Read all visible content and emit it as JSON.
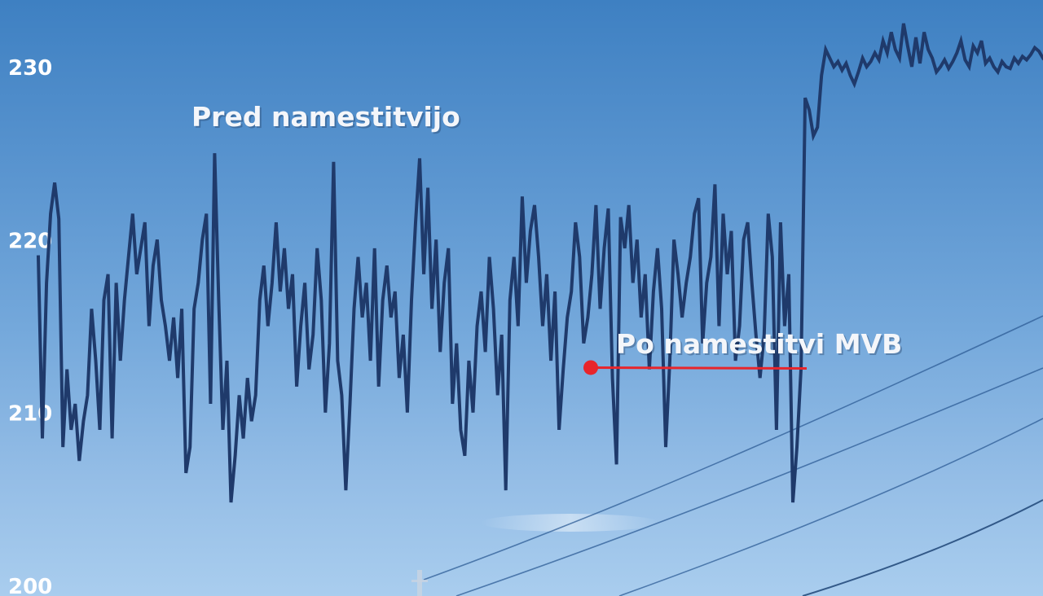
{
  "colors": {
    "line": "#1f3a6b",
    "marker": "#e8252b",
    "label_text": "#ffffff"
  },
  "chart_data": {
    "type": "line",
    "title": "",
    "xlabel": "",
    "ylabel": "",
    "ylim": [
      200,
      230.5
    ],
    "y_ticks": [
      230,
      220,
      210,
      200
    ],
    "y_tick_labels": [
      "230",
      "220",
      "210",
      "200"
    ],
    "grid": false,
    "legend": "none",
    "annotations": {
      "before": "Pred namestitvijo",
      "after": "Po namestitvi MVB"
    },
    "marker_value": 212.6,
    "series": [
      {
        "values": [
          219.0,
          208.5,
          217.5,
          221.5,
          223.3,
          221.2,
          208.0,
          212.5,
          209.0,
          210.5,
          207.2,
          209.5,
          211.0,
          216.0,
          213.0,
          209.0,
          216.5,
          218.0,
          208.5,
          217.5,
          213.0,
          216.5,
          219.0,
          221.5,
          218.0,
          219.5,
          221.0,
          215.0,
          218.5,
          220.0,
          216.5,
          215.0,
          213.0,
          215.5,
          212.0,
          216.0,
          206.5,
          208.0,
          216.0,
          217.5,
          220.0,
          221.5,
          210.5,
          225.0,
          216.5,
          209.0,
          213.0,
          204.8,
          207.5,
          211.0,
          208.5,
          212.0,
          209.5,
          211.0,
          216.5,
          218.5,
          215.0,
          217.5,
          221.0,
          217.0,
          219.5,
          216.0,
          218.0,
          211.5,
          215.0,
          217.5,
          212.5,
          214.5,
          219.5,
          216.5,
          210.0,
          214.0,
          224.5,
          213.0,
          211.0,
          205.5,
          210.5,
          216.0,
          219.0,
          215.5,
          217.5,
          213.0,
          219.5,
          211.5,
          216.5,
          218.5,
          215.5,
          217.0,
          212.0,
          214.5,
          210.0,
          216.5,
          221.0,
          224.7,
          218.0,
          223.0,
          216.0,
          220.0,
          213.5,
          217.5,
          219.5,
          210.5,
          214.0,
          209.0,
          207.5,
          213.0,
          210.0,
          215.0,
          217.0,
          213.5,
          219.0,
          216.0,
          211.0,
          214.5,
          205.5,
          216.5,
          219.0,
          215.0,
          222.5,
          217.5,
          220.5,
          222.0,
          219.0,
          215.0,
          218.0,
          213.0,
          217.0,
          209.0,
          212.5,
          215.5,
          217.0,
          221.0,
          219.0,
          214.0,
          215.5,
          218.0,
          222.0,
          216.0,
          219.5,
          221.8,
          212.0,
          207.0,
          221.3,
          219.5,
          222.0,
          217.5,
          220.0,
          215.5,
          218.0,
          212.5,
          217.0,
          219.5,
          216.0,
          208.0,
          213.0,
          220.0,
          218.0,
          215.5,
          217.5,
          219.0,
          221.5,
          222.4,
          214.0,
          217.5,
          219.0,
          223.2,
          215.0,
          221.5,
          218.0,
          220.5,
          213.0,
          215.0,
          220.0,
          221.0,
          217.5,
          214.5,
          212.0,
          214.5,
          221.5,
          219.0,
          209.0,
          221.0,
          215.0,
          218.0,
          204.8,
          208.0,
          212.6,
          228.2,
          227.5,
          226.0,
          226.5,
          229.5,
          231.0,
          230.5,
          230.0,
          230.3,
          229.8,
          230.2,
          229.5,
          229.0,
          229.7,
          230.5,
          230.0,
          230.3,
          230.8,
          230.4,
          231.5,
          230.8,
          232.0,
          231.0,
          230.5,
          232.5,
          231.2,
          230.0,
          231.7,
          230.2,
          232.0,
          231.0,
          230.5,
          229.7,
          230.0,
          230.4,
          229.9,
          230.3,
          230.8,
          231.5,
          230.4,
          230.0,
          231.2,
          230.8,
          231.5,
          230.2,
          230.5,
          230.0,
          229.7,
          230.3,
          230.0,
          229.9,
          230.5,
          230.2,
          230.6,
          230.4,
          230.7,
          231.1,
          230.9,
          230.5
        ]
      }
    ]
  }
}
